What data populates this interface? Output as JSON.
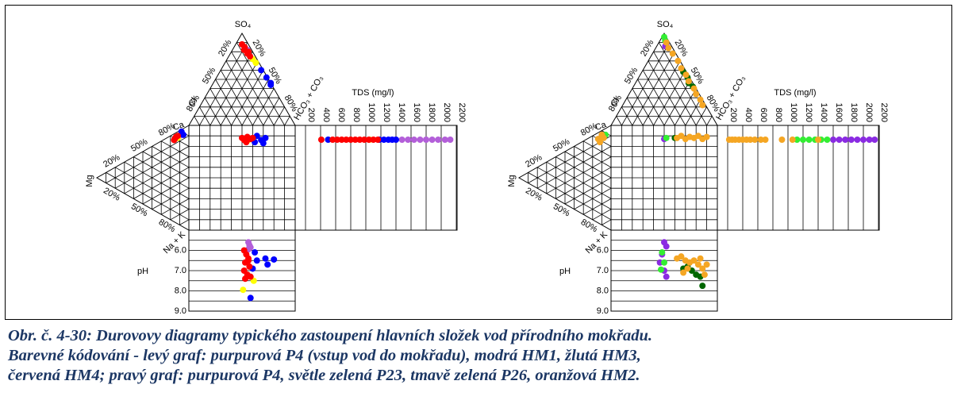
{
  "figure": {
    "labels": {
      "so4": "SO₄",
      "hco3": "HCO₃ + CO₃",
      "cl": "Cl",
      "ca": "Ca",
      "mg": "Mg",
      "nak": "Na + K",
      "tds": "TDS (mg/l)",
      "ph": "pH"
    },
    "percent_labels": [
      "20%",
      "50%",
      "80%"
    ],
    "tds_lim": [
      200,
      2200
    ],
    "tds_ticks": [
      200,
      400,
      600,
      800,
      1000,
      1200,
      1400,
      1600,
      1800,
      2000,
      2200
    ],
    "ph_lim": [
      5,
      9
    ],
    "ph_ticks": [
      {
        "value": 6,
        "label": "6.0"
      },
      {
        "value": 7,
        "label": "7.0"
      },
      {
        "value": 8,
        "label": "8.0"
      },
      {
        "value": 9,
        "label": "9.0"
      }
    ],
    "panels": [
      {
        "groups": [
          {
            "color": "#b35fd9",
            "top": [
              [
                82,
                4
              ]
            ],
            "left": [
              [
                85,
                10
              ]
            ],
            "square": [
              [
                55,
                12
              ]
            ],
            "tds": [
              1480,
              1560,
              1640,
              1720,
              1800,
              1880,
              1960,
              2050,
              2120
            ],
            "ph": [
              [
                56,
                5.6
              ],
              [
                57,
                5.75
              ],
              [
                58,
                5.85
              ],
              [
                56,
                5.95
              ]
            ]
          },
          {
            "color": "#0000ff",
            "top": [
              [
                60,
                2
              ],
              [
                52,
                1
              ],
              [
                46,
                0
              ],
              [
                44,
                1
              ]
            ],
            "left": [
              [
                90,
                8
              ],
              [
                88,
                6
              ]
            ],
            "square": [
              [
                64,
                10
              ],
              [
                68,
                14
              ],
              [
                72,
                12
              ],
              [
                70,
                17
              ],
              [
                62,
                16
              ]
            ],
            "tds": [
              500,
              1180,
              1240,
              1300,
              1350,
              1400
            ],
            "ph": [
              [
                62,
                6.1
              ],
              [
                64,
                6.5
              ],
              [
                72,
                6.4
              ],
              [
                74,
                6.7
              ],
              [
                80,
                6.45
              ],
              [
                60,
                6.9
              ],
              [
                58,
                8.35
              ]
            ]
          },
          {
            "color": "#ffff00",
            "top": [
              [
                72,
                4
              ],
              [
                68,
                3
              ]
            ],
            "left": [
              [
                82,
                12
              ]
            ],
            "square": [
              [
                56,
                14
              ]
            ],
            "tds": [
              1050
            ],
            "ph": [
              [
                61,
                7.5
              ],
              [
                51,
                7.95
              ]
            ]
          },
          {
            "color": "#ff0000",
            "top": [
              [
                88,
                6
              ],
              [
                85,
                5
              ],
              [
                82,
                7
              ],
              [
                80,
                4
              ],
              [
                78,
                6
              ],
              [
                75,
                5
              ]
            ],
            "left": [
              [
                82,
                14
              ],
              [
                80,
                15
              ],
              [
                84,
                12
              ],
              [
                78,
                16
              ]
            ],
            "square": [
              [
                50,
                12
              ],
              [
                52,
                14
              ],
              [
                55,
                11
              ],
              [
                58,
                13
              ],
              [
                54,
                16
              ],
              [
                60,
                12
              ]
            ],
            "tds": [
              410,
              560,
              620,
              680,
              740,
              800,
              860,
              920,
              980,
              1040,
              1100,
              1160
            ],
            "ph": [
              [
                52,
                6.0
              ],
              [
                54,
                6.2
              ],
              [
                56,
                6.4
              ],
              [
                53,
                6.6
              ],
              [
                57,
                6.8
              ],
              [
                52,
                7.0
              ],
              [
                55,
                7.2
              ],
              [
                58,
                7.3
              ],
              [
                53,
                7.4
              ],
              [
                56,
                6.5
              ]
            ]
          }
        ]
      },
      {
        "groups": [
          {
            "color": "#8a2be2",
            "top": [
              [
                88,
                4
              ],
              [
                86,
                6
              ]
            ],
            "left": [
              [
                85,
                10
              ]
            ],
            "square": [
              [
                50,
                13
              ]
            ],
            "tds": [
              1600,
              1680,
              1760,
              1840,
              1920,
              2000,
              2080,
              2150
            ],
            "ph": [
              [
                50,
                5.6
              ],
              [
                52,
                5.8
              ],
              [
                48,
                6.2
              ],
              [
                46,
                6.6
              ],
              [
                50,
                7.0
              ],
              [
                52,
                7.3
              ]
            ]
          },
          {
            "color": "#33ee33",
            "top": [
              [
                96,
                2
              ],
              [
                92,
                3
              ]
            ],
            "left": [
              [
                88,
                6
              ]
            ],
            "square": [
              [
                52,
                12
              ]
            ],
            "tds": [
              1120,
              1200,
              1280,
              1360,
              1440,
              1520
            ],
            "ph": [
              [
                48,
                6.1
              ],
              [
                50,
                6.6
              ],
              [
                47,
                6.95
              ]
            ]
          },
          {
            "color": "#006600",
            "top": [
              [
                58,
                3
              ],
              [
                52,
                2
              ],
              [
                46,
                4
              ],
              [
                42,
                2
              ]
            ],
            "square": [
              [
                60,
                12
              ]
            ],
            "ph": [
              [
                68,
                6.9
              ],
              [
                72,
                6.8
              ],
              [
                76,
                7.0
              ],
              [
                80,
                7.2
              ],
              [
                84,
                7.3
              ],
              [
                86,
                7.75
              ]
            ]
          },
          {
            "color": "#f5a623",
            "top": [
              [
                90,
                3
              ],
              [
                84,
                4
              ],
              [
                78,
                3
              ],
              [
                70,
                2
              ],
              [
                62,
                3
              ],
              [
                55,
                2
              ],
              [
                48,
                3
              ],
              [
                40,
                2
              ],
              [
                34,
                3
              ],
              [
                28,
                2
              ],
              [
                22,
                3
              ]
            ],
            "left": [
              [
                86,
                10
              ],
              [
                80,
                14
              ],
              [
                84,
                8
              ],
              [
                78,
                12
              ]
            ],
            "square": [
              [
                62,
                12
              ],
              [
                66,
                10
              ],
              [
                70,
                13
              ],
              [
                74,
                11
              ],
              [
                78,
                12
              ],
              [
                82,
                10
              ],
              [
                86,
                13
              ],
              [
                90,
                11
              ]
            ],
            "tds": [
              220,
              260,
              300,
              350,
              400,
              450,
              500,
              560,
              640,
              700,
              920,
              1060,
              1400
            ],
            "ph": [
              [
                62,
                6.4
              ],
              [
                66,
                6.3
              ],
              [
                70,
                6.5
              ],
              [
                74,
                6.6
              ],
              [
                78,
                6.5
              ],
              [
                82,
                6.7
              ],
              [
                86,
                6.9
              ],
              [
                88,
                7.2
              ],
              [
                72,
                6.9
              ],
              [
                68,
                7.1
              ],
              [
                84,
                6.4
              ],
              [
                90,
                6.7
              ]
            ]
          }
        ]
      }
    ]
  },
  "caption": [
    "Obr. č.  4-30: Durovovy diagramy typického zastoupení hlavních složek vod přírodního mokřadu.",
    "Barevné kódování - levý graf: purpurová P4 (vstup vod do mokřadu), modrá HM1, žlutá HM3,",
    "červená HM4; pravý graf: purpurová P4, světle zelená P23, tmavě zelená P26, oranžová HM2."
  ]
}
